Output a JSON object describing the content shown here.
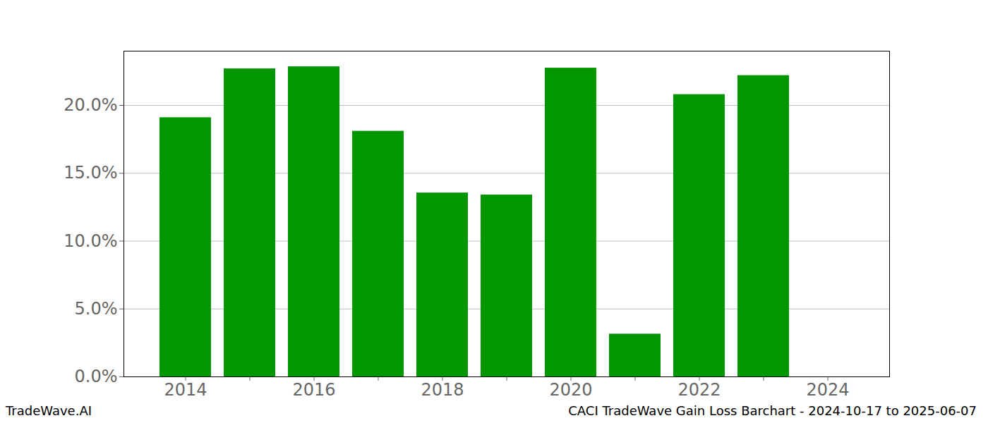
{
  "chart_data": {
    "type": "bar",
    "title": "CACI TradeWave Gain Loss Barchart - 2024-10-17 to 2025-06-07",
    "caption": "TradeWave.AI",
    "categories": [
      "2014",
      null,
      "2016",
      null,
      "2018",
      null,
      "2020",
      null,
      "2022",
      null,
      "2024"
    ],
    "values": [
      19.1,
      22.7,
      22.85,
      18.1,
      13.55,
      13.4,
      22.75,
      3.15,
      20.8,
      22.2,
      null
    ],
    "color": "#029702",
    "ylim": [
      0,
      24
    ],
    "yticks": [
      {
        "value": 0,
        "label": "0.0%"
      },
      {
        "value": 5,
        "label": "5.0%"
      },
      {
        "value": 10,
        "label": "10.0%"
      },
      {
        "value": 15,
        "label": "15.0%"
      },
      {
        "value": 20,
        "label": "20.0%"
      }
    ],
    "grid": true
  }
}
